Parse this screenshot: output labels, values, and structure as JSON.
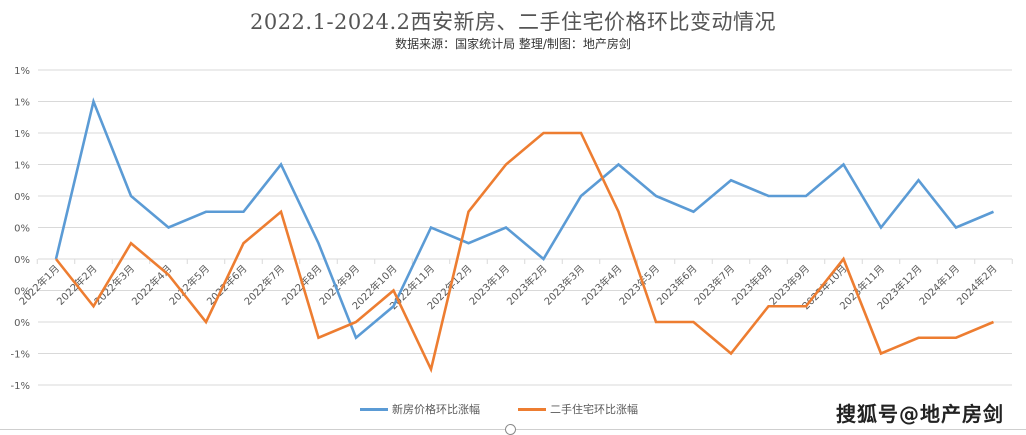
{
  "chart_data": {
    "type": "line",
    "title": "2022.1-2024.2西安新房、二手住宅价格环比变动情况",
    "subtitle": "数据来源：国家统计局    整理/制图：地产房剑",
    "xlabel": "",
    "ylabel": "",
    "ylim": [
      -0.8,
      1.2
    ],
    "yticks": [
      1.2,
      1.0,
      0.8,
      0.6,
      0.4,
      0.2,
      0.0,
      -0.2,
      -0.4,
      -0.6,
      -0.8
    ],
    "ytick_labels": [
      "1%",
      "1%",
      "1%",
      "1%",
      "0%",
      "0%",
      "0%",
      "0%",
      "0%",
      "-1%",
      "-1%"
    ],
    "grid": true,
    "legend_position": "bottom",
    "categories": [
      "2022年1月",
      "2022年2月",
      "2022年3月",
      "2022年4月",
      "2022年5月",
      "2022年6月",
      "2022年7月",
      "2022年8月",
      "2022年9月",
      "2022年10月",
      "2022年11月",
      "2022年12月",
      "2023年1月",
      "2023年2月",
      "2023年3月",
      "2023年4月",
      "2023年5月",
      "2023年6月",
      "2023年7月",
      "2023年8月",
      "2023年9月",
      "2023年10月",
      "2023年11月",
      "2023年12月",
      "2024年1月",
      "2024年2月"
    ],
    "series": [
      {
        "name": "新房价格环比涨幅",
        "color": "#5B9BD5",
        "values": [
          0.0,
          1.0,
          0.4,
          0.2,
          0.3,
          0.3,
          0.6,
          0.1,
          -0.5,
          -0.3,
          0.2,
          0.1,
          0.2,
          0.0,
          0.4,
          0.6,
          0.4,
          0.3,
          0.5,
          0.4,
          0.4,
          0.6,
          0.2,
          0.5,
          0.2,
          0.3
        ]
      },
      {
        "name": "二手住宅环比涨幅",
        "color": "#ED7D31",
        "values": [
          0.0,
          -0.3,
          0.1,
          -0.1,
          -0.4,
          0.1,
          0.3,
          -0.5,
          -0.4,
          -0.2,
          -0.7,
          0.3,
          0.6,
          0.8,
          0.8,
          0.3,
          -0.4,
          -0.4,
          -0.6,
          -0.3,
          -0.3,
          0.0,
          -0.6,
          -0.5,
          -0.5,
          -0.4
        ]
      }
    ]
  },
  "watermark": "搜狐号@地产房剑"
}
